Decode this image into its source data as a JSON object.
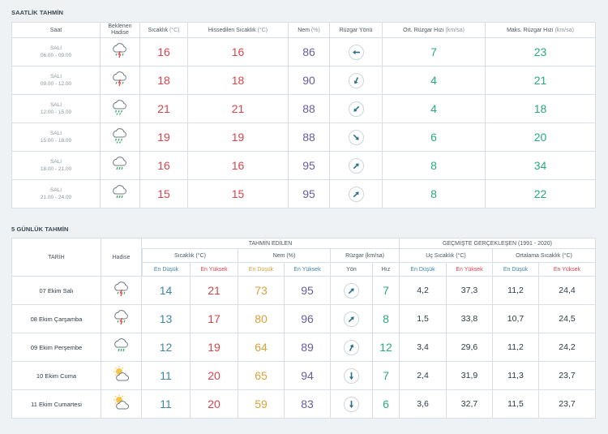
{
  "hourly": {
    "title": "SAATLİK TAHMİN",
    "headers": {
      "time": "Saat",
      "event": "Beklenen Hadise",
      "temp_label": "Sıcaklık",
      "temp_unit": "(°C)",
      "feels_label": "Hissedilen Sıcaklık",
      "feels_unit": "(°C)",
      "hum_label": "Nem",
      "hum_unit": "(%)",
      "wind_dir": "Rüzgar Yönü",
      "avg_label": "Ort. Rüzgar Hızı",
      "avg_unit": "(km/sa)",
      "max_label": "Maks. Rüzgar Hızı",
      "max_unit": "(km/sa)"
    },
    "rows": [
      {
        "day": "SALI",
        "range": "06.00 - 09.00",
        "icon": "thunder-rain-icon",
        "temp": "16",
        "feels": "16",
        "hum": "86",
        "dir": "west",
        "avg": "7",
        "max": "23"
      },
      {
        "day": "SALI",
        "range": "09.00 - 12.00",
        "icon": "thunder-rain-icon",
        "temp": "18",
        "feels": "18",
        "hum": "90",
        "dir": "south-southwest",
        "avg": "4",
        "max": "21"
      },
      {
        "day": "SALI",
        "range": "12.00 - 15.00",
        "icon": "heavy-rain-icon",
        "temp": "21",
        "feels": "21",
        "hum": "88",
        "dir": "southwest",
        "avg": "4",
        "max": "18"
      },
      {
        "day": "SALI",
        "range": "15.00 - 18.00",
        "icon": "heavy-rain-icon",
        "temp": "19",
        "feels": "19",
        "hum": "88",
        "dir": "southeast",
        "avg": "6",
        "max": "20"
      },
      {
        "day": "SALI",
        "range": "18.00 - 21.00",
        "icon": "rain-icon",
        "temp": "16",
        "feels": "16",
        "hum": "95",
        "dir": "northeast",
        "avg": "8",
        "max": "34"
      },
      {
        "day": "SALI",
        "range": "21.00 - 24.00",
        "icon": "rain-icon",
        "temp": "15",
        "feels": "15",
        "hum": "95",
        "dir": "northeast",
        "avg": "8",
        "max": "22"
      }
    ]
  },
  "daily": {
    "title": "5 GÜNLÜK TAHMİN",
    "headers": {
      "date": "TARİH",
      "event": "Hadise",
      "forecast": "TAHMİN EDİLEN",
      "past": "GEÇMİŞTE GERÇEKLEŞEN (1991 - 2020)",
      "temp": "Sıcaklık (°C)",
      "hum": "Nem (%)",
      "wind": "Rüzgar (km/sa)",
      "extreme": "Uç Sıcaklık (°C)",
      "average": "Ortalama Sıcaklık (°C)",
      "low": "En Düşük",
      "high": "En Yüksek",
      "dir": "Yön",
      "speed": "Hız"
    },
    "rows": [
      {
        "date": "07 Ekim Salı",
        "icon": "thunder-rain-icon",
        "tmin": "14",
        "tmax": "21",
        "hmin": "73",
        "hmax": "95",
        "dir": "northeast",
        "speed": "7",
        "emin": "4,2",
        "emax": "37,3",
        "amin": "11,2",
        "amax": "24,4"
      },
      {
        "date": "08 Ekim Çarşamba",
        "icon": "thunder-rain-icon",
        "tmin": "13",
        "tmax": "17",
        "hmin": "80",
        "hmax": "96",
        "dir": "northeast",
        "speed": "8",
        "emin": "1,5",
        "emax": "33,8",
        "amin": "10,7",
        "amax": "24,5"
      },
      {
        "date": "09 Ekim Perşembe",
        "icon": "rain-icon",
        "tmin": "12",
        "tmax": "19",
        "hmin": "64",
        "hmax": "89",
        "dir": "north-northeast",
        "speed": "12",
        "emin": "3,4",
        "emax": "29,6",
        "amin": "11,2",
        "amax": "24,2"
      },
      {
        "date": "10 Ekim Cuma",
        "icon": "partly-cloudy-icon",
        "tmin": "11",
        "tmax": "20",
        "hmin": "65",
        "hmax": "94",
        "dir": "south",
        "speed": "7",
        "emin": "2,4",
        "emax": "31,9",
        "amin": "11,3",
        "amax": "23,7"
      },
      {
        "date": "11 Ekim Cumartesi",
        "icon": "partly-cloudy-icon",
        "tmin": "11",
        "tmax": "20",
        "hmin": "59",
        "hmax": "83",
        "dir": "south",
        "speed": "6",
        "emin": "3,6",
        "emax": "32,7",
        "amin": "11,5",
        "amax": "23,7"
      }
    ]
  },
  "colors": {
    "blue": "#3f86a7",
    "red": "#d8444c",
    "purple": "#6a5c9c",
    "green": "#2aa880",
    "orange": "#d9a13a"
  }
}
